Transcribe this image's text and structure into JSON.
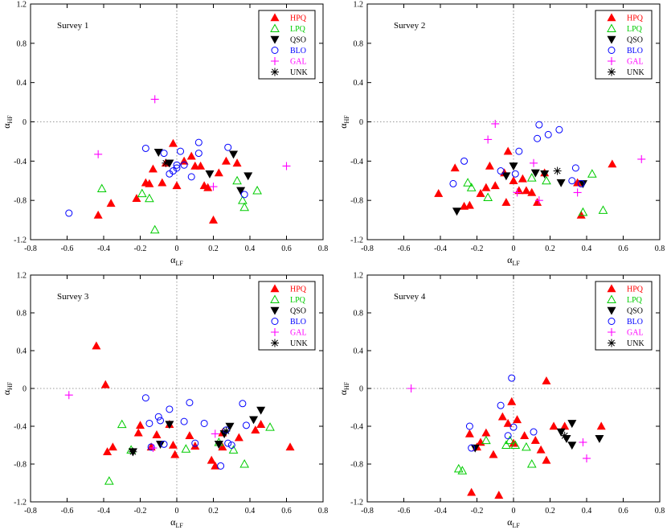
{
  "legend_entries": [
    {
      "key": "HPQ",
      "label": "HPQ",
      "color": "#ff0000",
      "marker": "filled-triangle-up"
    },
    {
      "key": "LPQ",
      "label": "LPQ",
      "color": "#00cc00",
      "marker": "open-triangle-up"
    },
    {
      "key": "QSO",
      "label": "QSO",
      "color": "#000000",
      "marker": "filled-triangle-down"
    },
    {
      "key": "BLO",
      "label": "BLO",
      "color": "#0000ff",
      "marker": "open-circle"
    },
    {
      "key": "GAL",
      "label": "GAL",
      "color": "#ff00ff",
      "marker": "plus"
    },
    {
      "key": "UNK",
      "label": "UNK",
      "color": "#000000",
      "marker": "asterisk"
    }
  ],
  "chart_data": [
    {
      "type": "scatter",
      "title": "Survey 1",
      "xlabel": "α",
      "xlabel_sub": "LF",
      "ylabel": "α",
      "ylabel_sub": "HF",
      "xlim": [
        -0.8,
        0.8
      ],
      "ylim": [
        -1.2,
        1.2
      ],
      "xticks": [
        "-0.8",
        "-0.6",
        "-0.4",
        "-0.2",
        "0",
        "0.2",
        "0.4",
        "0.6",
        "0.8"
      ],
      "yticks": [
        "-1.2",
        "-0.8",
        "-0.4",
        "0",
        "0.4",
        "0.8",
        "1.2"
      ],
      "series": [
        {
          "name": "HPQ",
          "points": [
            [
              -0.43,
              -0.95
            ],
            [
              -0.36,
              -0.83
            ],
            [
              -0.22,
              -0.78
            ],
            [
              -0.17,
              -0.62
            ],
            [
              -0.15,
              -0.63
            ],
            [
              -0.13,
              -0.48
            ],
            [
              -0.08,
              -0.62
            ],
            [
              -0.06,
              -0.42
            ],
            [
              -0.02,
              -0.22
            ],
            [
              0.0,
              -0.65
            ],
            [
              0.04,
              -0.4
            ],
            [
              0.08,
              -0.35
            ],
            [
              0.1,
              -0.45
            ],
            [
              0.13,
              -0.45
            ],
            [
              0.15,
              -0.65
            ],
            [
              0.17,
              -0.67
            ],
            [
              0.2,
              -1.0
            ],
            [
              0.23,
              -0.52
            ],
            [
              0.27,
              -0.4
            ],
            [
              0.33,
              -0.42
            ]
          ]
        },
        {
          "name": "LPQ",
          "points": [
            [
              -0.41,
              -0.68
            ],
            [
              -0.19,
              -0.73
            ],
            [
              -0.15,
              -0.78
            ],
            [
              -0.12,
              -1.1
            ],
            [
              0.33,
              -0.6
            ],
            [
              0.36,
              -0.8
            ],
            [
              0.37,
              -0.87
            ],
            [
              0.44,
              -0.7
            ]
          ]
        },
        {
          "name": "QSO",
          "points": [
            [
              -0.1,
              -0.31
            ],
            [
              -0.04,
              -0.42
            ],
            [
              0.18,
              -0.53
            ],
            [
              0.31,
              -0.33
            ],
            [
              0.35,
              -0.7
            ],
            [
              0.39,
              -0.55
            ]
          ]
        },
        {
          "name": "BLO",
          "points": [
            [
              -0.59,
              -0.93
            ],
            [
              -0.17,
              -0.27
            ],
            [
              -0.07,
              -0.32
            ],
            [
              -0.04,
              -0.53
            ],
            [
              -0.02,
              -0.5
            ],
            [
              0.0,
              -0.47
            ],
            [
              0.0,
              -0.44
            ],
            [
              0.02,
              -0.3
            ],
            [
              0.04,
              -0.44
            ],
            [
              0.08,
              -0.56
            ],
            [
              0.12,
              -0.21
            ],
            [
              0.12,
              -0.32
            ],
            [
              0.28,
              -0.26
            ],
            [
              0.37,
              -0.74
            ]
          ]
        },
        {
          "name": "GAL",
          "points": [
            [
              -0.43,
              -0.33
            ],
            [
              -0.12,
              0.23
            ],
            [
              0.2,
              -0.66
            ],
            [
              0.6,
              -0.45
            ]
          ]
        },
        {
          "name": "UNK",
          "points": [
            [
              -0.06,
              -0.42
            ]
          ]
        }
      ]
    },
    {
      "type": "scatter",
      "title": "Survey 2",
      "xlabel": "α",
      "xlabel_sub": "LF",
      "ylabel": "α",
      "ylabel_sub": "HF",
      "xlim": [
        -0.8,
        0.8
      ],
      "ylim": [
        -1.2,
        1.2
      ],
      "xticks": [
        "-0.8",
        "-0.6",
        "-0.4",
        "-0.2",
        "0",
        "0.2",
        "0.4",
        "0.6",
        "0.8"
      ],
      "yticks": [
        "-1.2",
        "-0.8",
        "-0.4",
        "0",
        "0.4",
        "0.8",
        "1.2"
      ],
      "series": [
        {
          "name": "HPQ",
          "points": [
            [
              -0.41,
              -0.73
            ],
            [
              -0.32,
              -0.47
            ],
            [
              -0.27,
              -0.86
            ],
            [
              -0.24,
              -0.85
            ],
            [
              -0.18,
              -0.73
            ],
            [
              -0.15,
              -0.67
            ],
            [
              -0.13,
              -0.45
            ],
            [
              -0.1,
              -0.65
            ],
            [
              -0.05,
              -0.52
            ],
            [
              -0.04,
              -0.82
            ],
            [
              -0.03,
              -0.3
            ],
            [
              0.0,
              -0.6
            ],
            [
              0.03,
              -0.7
            ],
            [
              0.05,
              -0.58
            ],
            [
              0.07,
              -0.7
            ],
            [
              0.1,
              -0.72
            ],
            [
              0.13,
              -0.82
            ],
            [
              0.17,
              -0.52
            ],
            [
              0.35,
              -0.62
            ],
            [
              0.37,
              -0.95
            ],
            [
              0.54,
              -0.43
            ]
          ]
        },
        {
          "name": "LPQ",
          "points": [
            [
              -0.25,
              -0.62
            ],
            [
              -0.23,
              -0.67
            ],
            [
              -0.14,
              -0.77
            ],
            [
              0.1,
              -0.57
            ],
            [
              0.18,
              -0.6
            ],
            [
              0.38,
              -0.92
            ],
            [
              0.43,
              -0.53
            ],
            [
              0.49,
              -0.9
            ]
          ]
        },
        {
          "name": "QSO",
          "points": [
            [
              -0.31,
              -0.91
            ],
            [
              -0.04,
              -0.55
            ],
            [
              0.0,
              -0.45
            ],
            [
              0.12,
              -0.52
            ],
            [
              0.17,
              -0.53
            ],
            [
              0.26,
              -0.62
            ],
            [
              0.38,
              -0.63
            ]
          ]
        },
        {
          "name": "BLO",
          "points": [
            [
              -0.33,
              -0.63
            ],
            [
              -0.27,
              -0.4
            ],
            [
              -0.07,
              -0.5
            ],
            [
              0.01,
              -0.53
            ],
            [
              0.03,
              -0.3
            ],
            [
              0.13,
              -0.17
            ],
            [
              0.14,
              -0.03
            ],
            [
              0.19,
              -0.13
            ],
            [
              0.25,
              -0.08
            ],
            [
              0.32,
              -0.6
            ],
            [
              0.34,
              -0.47
            ],
            [
              0.37,
              -0.63
            ]
          ]
        },
        {
          "name": "GAL",
          "points": [
            [
              -0.14,
              -0.18
            ],
            [
              -0.1,
              -0.02
            ],
            [
              0.02,
              -0.72
            ],
            [
              0.11,
              -0.42
            ],
            [
              0.14,
              -0.8
            ],
            [
              0.35,
              -0.72
            ],
            [
              0.7,
              -0.38
            ]
          ]
        },
        {
          "name": "UNK",
          "points": [
            [
              0.24,
              -0.5
            ]
          ]
        }
      ]
    },
    {
      "type": "scatter",
      "title": "Survey 3",
      "xlabel": "α",
      "xlabel_sub": "LF",
      "ylabel": "α",
      "ylabel_sub": "HF",
      "xlim": [
        -0.8,
        0.8
      ],
      "ylim": [
        -1.2,
        1.2
      ],
      "xticks": [
        "-0.8",
        "-0.6",
        "-0.4",
        "-0.2",
        "0",
        "0.2",
        "0.4",
        "0.6",
        "0.8"
      ],
      "yticks": [
        "-1.2",
        "-0.8",
        "-0.4",
        "0",
        "0.4",
        "0.8",
        "1.2"
      ],
      "series": [
        {
          "name": "HPQ",
          "points": [
            [
              -0.44,
              0.45
            ],
            [
              -0.39,
              0.04
            ],
            [
              -0.38,
              -0.67
            ],
            [
              -0.35,
              -0.62
            ],
            [
              -0.21,
              -0.47
            ],
            [
              -0.2,
              -0.39
            ],
            [
              -0.14,
              -0.62
            ],
            [
              -0.11,
              -0.49
            ],
            [
              -0.04,
              -0.38
            ],
            [
              -0.02,
              -0.6
            ],
            [
              -0.01,
              -0.7
            ],
            [
              0.07,
              -0.5
            ],
            [
              0.1,
              -0.61
            ],
            [
              0.19,
              -0.76
            ],
            [
              0.21,
              -0.82
            ],
            [
              0.25,
              -0.47
            ],
            [
              0.25,
              -0.62
            ],
            [
              0.34,
              -0.52
            ],
            [
              0.43,
              -0.44
            ],
            [
              0.46,
              -0.38
            ],
            [
              0.62,
              -0.62
            ]
          ]
        },
        {
          "name": "LPQ",
          "points": [
            [
              -0.37,
              -0.98
            ],
            [
              -0.3,
              -0.38
            ],
            [
              -0.25,
              -0.65
            ],
            [
              0.05,
              -0.64
            ],
            [
              0.23,
              -0.57
            ],
            [
              0.31,
              -0.65
            ],
            [
              0.37,
              -0.8
            ],
            [
              0.51,
              -0.41
            ]
          ]
        },
        {
          "name": "QSO",
          "points": [
            [
              -0.24,
              -0.67
            ],
            [
              -0.09,
              -0.59
            ],
            [
              -0.04,
              -0.38
            ],
            [
              0.23,
              -0.59
            ],
            [
              0.26,
              -0.48
            ],
            [
              0.29,
              -0.4
            ],
            [
              0.42,
              -0.33
            ],
            [
              0.46,
              -0.23
            ]
          ]
        },
        {
          "name": "BLO",
          "points": [
            [
              -0.17,
              -0.1
            ],
            [
              -0.15,
              -0.37
            ],
            [
              -0.14,
              -0.62
            ],
            [
              -0.1,
              -0.3
            ],
            [
              -0.09,
              -0.34
            ],
            [
              -0.07,
              -0.59
            ],
            [
              -0.04,
              -0.22
            ],
            [
              0.04,
              -0.35
            ],
            [
              0.07,
              -0.15
            ],
            [
              0.1,
              -0.58
            ],
            [
              0.15,
              -0.37
            ],
            [
              0.24,
              -0.82
            ],
            [
              0.27,
              -0.44
            ],
            [
              0.28,
              -0.58
            ],
            [
              0.3,
              -0.6
            ],
            [
              0.36,
              -0.16
            ],
            [
              0.38,
              -0.39
            ]
          ]
        },
        {
          "name": "GAL",
          "points": [
            [
              -0.59,
              -0.07
            ],
            [
              -0.13,
              -0.63
            ],
            [
              0.21,
              -0.48
            ]
          ]
        },
        {
          "name": "UNK",
          "points": [
            [
              -0.24,
              -0.67
            ],
            [
              0.27,
              -0.45
            ]
          ]
        }
      ]
    },
    {
      "type": "scatter",
      "title": "Survey 4",
      "xlabel": "α",
      "xlabel_sub": "LF",
      "ylabel": "α",
      "ylabel_sub": "HF",
      "xlim": [
        -0.8,
        0.8
      ],
      "ylim": [
        -1.2,
        1.2
      ],
      "xticks": [
        "-0.8",
        "-0.6",
        "-0.4",
        "-0.2",
        "0",
        "0.2",
        "0.4",
        "0.6",
        "0.8"
      ],
      "yticks": [
        "-1.2",
        "-0.8",
        "-0.4",
        "0",
        "0.4",
        "0.8",
        "1.2"
      ],
      "series": [
        {
          "name": "HPQ",
          "points": [
            [
              -0.24,
              -0.48
            ],
            [
              -0.23,
              -1.1
            ],
            [
              -0.2,
              -0.62
            ],
            [
              -0.18,
              -0.57
            ],
            [
              -0.15,
              -0.47
            ],
            [
              -0.11,
              -0.7
            ],
            [
              -0.08,
              -1.13
            ],
            [
              -0.06,
              -0.3
            ],
            [
              -0.03,
              -0.37
            ],
            [
              -0.01,
              -0.14
            ],
            [
              0.0,
              -0.58
            ],
            [
              0.02,
              -0.33
            ],
            [
              0.06,
              -0.5
            ],
            [
              0.12,
              -0.55
            ],
            [
              0.15,
              -0.65
            ],
            [
              0.18,
              0.08
            ],
            [
              0.18,
              -0.76
            ],
            [
              0.22,
              -0.4
            ],
            [
              0.28,
              -0.4
            ],
            [
              0.48,
              -0.4
            ]
          ]
        },
        {
          "name": "LPQ",
          "points": [
            [
              -0.3,
              -0.85
            ],
            [
              -0.28,
              -0.87
            ],
            [
              -0.15,
              -0.55
            ],
            [
              -0.04,
              -0.6
            ],
            [
              -0.02,
              -0.55
            ],
            [
              0.01,
              -0.6
            ],
            [
              0.07,
              -0.62
            ],
            [
              0.1,
              -0.8
            ]
          ]
        },
        {
          "name": "QSO",
          "points": [
            [
              -0.21,
              -0.63
            ],
            [
              0.26,
              -0.46
            ],
            [
              0.29,
              -0.53
            ],
            [
              0.32,
              -0.6
            ],
            [
              0.32,
              -0.37
            ],
            [
              0.47,
              -0.53
            ]
          ]
        },
        {
          "name": "BLO",
          "points": [
            [
              -0.24,
              -0.4
            ],
            [
              -0.23,
              -0.63
            ],
            [
              -0.07,
              -0.18
            ],
            [
              -0.03,
              -0.5
            ],
            [
              -0.01,
              0.11
            ],
            [
              0.0,
              -0.41
            ],
            [
              0.11,
              -0.46
            ]
          ]
        },
        {
          "name": "GAL",
          "points": [
            [
              -0.56,
              0.0
            ],
            [
              0.38,
              -0.57
            ],
            [
              0.4,
              -0.74
            ]
          ]
        },
        {
          "name": "UNK",
          "points": [
            [
              0.28,
              -0.5
            ]
          ]
        }
      ]
    }
  ]
}
